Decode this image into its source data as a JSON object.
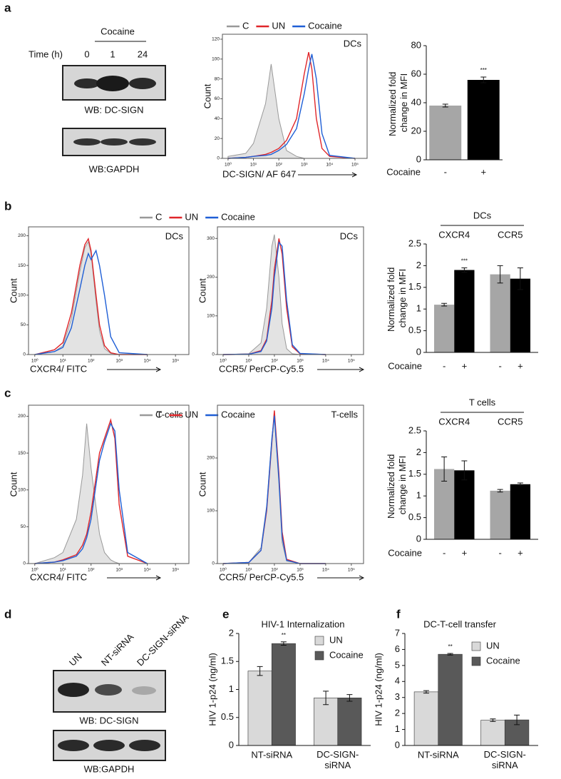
{
  "panel_labels": [
    "a",
    "b",
    "c",
    "d",
    "e",
    "f"
  ],
  "blots": [
    {
      "header": "Cocaine",
      "row_label": "Time (h)",
      "lanes": [
        "0",
        "1",
        "24"
      ],
      "panels": [
        "WB: DC-SIGN",
        "WB:GAPDH"
      ]
    },
    {
      "lanes": [
        "UN",
        "NT-siRNA",
        "DC-SIGN-siRNA"
      ],
      "panels": [
        "WB: DC-SIGN",
        "WB:GAPDH"
      ]
    }
  ],
  "chart_data": [
    {
      "type": "histogram-overlay",
      "x_label": "DC-SIGN/ AF 647",
      "y_label": "Count",
      "panel_text": "DCs",
      "legend": true,
      "log_x": true,
      "xlim": [
        0.6,
        300000
      ],
      "xticks": [
        {
          "value": 1,
          "label": "10⁰"
        },
        {
          "value": 10,
          "label": "10¹"
        },
        {
          "value": 100,
          "label": "10²"
        },
        {
          "value": 1000,
          "label": "10³"
        },
        {
          "value": 10000,
          "label": "10⁴"
        },
        {
          "value": 100000,
          "label": "10⁵"
        }
      ],
      "ylim": [
        0,
        125
      ],
      "yticks": [
        0,
        20,
        40,
        60,
        80,
        100,
        120
      ],
      "x": [
        1,
        5,
        10,
        30,
        50,
        100,
        200,
        500,
        1000,
        1500,
        2000,
        3000,
        5000,
        10000,
        100000
      ],
      "series": [
        {
          "name": "C",
          "color": "#999999",
          "fill": true,
          "values": [
            2,
            5,
            15,
            55,
            95,
            40,
            8,
            2,
            0,
            0,
            0,
            0,
            0,
            0,
            0
          ]
        },
        {
          "name": "UN",
          "color": "#e0262a",
          "values": [
            0,
            1,
            2,
            4,
            6,
            10,
            18,
            40,
            85,
            107,
            90,
            40,
            10,
            2,
            0
          ]
        },
        {
          "name": "Cocaine",
          "color": "#1f5fd6",
          "values": [
            0,
            1,
            2,
            3,
            4,
            8,
            14,
            30,
            65,
            90,
            105,
            80,
            25,
            3,
            0
          ]
        }
      ]
    },
    {
      "type": "bar",
      "y_label": "Normalized fold change in MFI",
      "x_label": "Cocaine",
      "categories": [
        "-",
        "+"
      ],
      "values": [
        38,
        56
      ],
      "errors": [
        1,
        2
      ],
      "significance": [
        null,
        "***"
      ],
      "colors": [
        "#a6a6a6",
        "#000000"
      ],
      "ylim": [
        0,
        80
      ],
      "yticks": [
        0,
        20,
        40,
        60,
        80
      ]
    },
    {
      "type": "histogram-overlay",
      "x_label": "CXCR4/ FITC",
      "y_label": "Count",
      "panel_text": "DCs",
      "legend": true,
      "log_x": true,
      "xlim": [
        0.6,
        300000
      ],
      "xticks": [
        {
          "value": 1,
          "label": "10⁰"
        },
        {
          "value": 10,
          "label": "10¹"
        },
        {
          "value": 100,
          "label": "10²"
        },
        {
          "value": 1000,
          "label": "10³"
        },
        {
          "value": 10000,
          "label": "10⁴"
        },
        {
          "value": 100000,
          "label": "10⁵"
        }
      ],
      "ylim": [
        0,
        215
      ],
      "yticks": [
        0,
        50,
        100,
        150,
        200
      ],
      "x": [
        1,
        5,
        10,
        20,
        40,
        60,
        80,
        100,
        150,
        200,
        300,
        500,
        1000,
        10000
      ],
      "series": [
        {
          "name": "C",
          "color": "#999999",
          "fill": true,
          "values": [
            0,
            5,
            15,
            60,
            140,
            180,
            190,
            170,
            90,
            40,
            10,
            2,
            0,
            0
          ]
        },
        {
          "name": "UN",
          "color": "#e0262a",
          "values": [
            0,
            8,
            20,
            70,
            150,
            185,
            195,
            175,
            100,
            50,
            15,
            3,
            0,
            0
          ]
        },
        {
          "name": "Cocaine",
          "color": "#1f5fd6",
          "values": [
            0,
            5,
            12,
            45,
            110,
            150,
            170,
            160,
            175,
            150,
            100,
            30,
            3,
            0
          ]
        }
      ]
    },
    {
      "type": "histogram-overlay",
      "x_label": "CCR5/ PerCP-Cy5.5",
      "y_label": "Count",
      "panel_text": "DCs",
      "legend": false,
      "log_x": true,
      "xlim": [
        0.6,
        300000
      ],
      "xticks": [
        {
          "value": 1,
          "label": "10⁰"
        },
        {
          "value": 10,
          "label": "10¹"
        },
        {
          "value": 100,
          "label": "10²"
        },
        {
          "value": 1000,
          "label": "10³"
        },
        {
          "value": 10000,
          "label": "10⁴"
        },
        {
          "value": 100000,
          "label": "10⁵"
        }
      ],
      "ylim": [
        0,
        330
      ],
      "yticks": [
        0,
        100,
        200,
        300
      ],
      "x": [
        1,
        10,
        30,
        50,
        80,
        100,
        150,
        200,
        300,
        500,
        1000,
        10000
      ],
      "series": [
        {
          "name": "C",
          "color": "#999999",
          "fill": true,
          "values": [
            0,
            2,
            30,
            120,
            280,
            310,
            200,
            80,
            15,
            2,
            0,
            0
          ]
        },
        {
          "name": "UN",
          "color": "#e0262a",
          "values": [
            0,
            1,
            10,
            40,
            140,
            220,
            300,
            260,
            120,
            20,
            2,
            0
          ]
        },
        {
          "name": "Cocaine",
          "color": "#1f5fd6",
          "values": [
            0,
            1,
            8,
            35,
            120,
            200,
            290,
            280,
            140,
            25,
            3,
            0
          ]
        }
      ]
    },
    {
      "type": "grouped-bar",
      "y_label": "Normalized fold change in MFI",
      "x_label": "Cocaine",
      "group_title": "DCs",
      "categories": [
        "CXCR4",
        "CCR5"
      ],
      "ylim": [
        0,
        2.5
      ],
      "yticks": [
        0,
        0.5,
        1,
        1.5,
        2,
        2.5
      ],
      "series": [
        {
          "name": "-",
          "color": "#a6a6a6",
          "values": [
            1.1,
            1.8
          ],
          "errors": [
            0.03,
            0.2
          ],
          "significance": [
            null,
            null
          ]
        },
        {
          "name": "+",
          "color": "#000000",
          "values": [
            1.9,
            1.7
          ],
          "errors": [
            0.05,
            0.25
          ],
          "significance": [
            "***",
            null
          ]
        }
      ]
    },
    {
      "type": "histogram-overlay",
      "x_label": "CXCR4/ FITC",
      "y_label": "Count",
      "panel_text": "T-cells",
      "legend": true,
      "log_x": true,
      "xlim": [
        0.6,
        300000
      ],
      "xticks": [
        {
          "value": 1,
          "label": "10⁰"
        },
        {
          "value": 10,
          "label": "10¹"
        },
        {
          "value": 100,
          "label": "10²"
        },
        {
          "value": 1000,
          "label": "10³"
        },
        {
          "value": 10000,
          "label": "10⁴"
        },
        {
          "value": 100000,
          "label": "10⁵"
        }
      ],
      "ylim": [
        0,
        215
      ],
      "yticks": [
        0,
        50,
        100,
        150,
        200
      ],
      "x": [
        1,
        5,
        10,
        30,
        50,
        70,
        100,
        200,
        300,
        500,
        700,
        1000,
        2000,
        10000
      ],
      "series": [
        {
          "name": "C",
          "color": "#999999",
          "fill": true,
          "values": [
            0,
            8,
            15,
            60,
            120,
            190,
            130,
            40,
            15,
            5,
            2,
            0,
            0,
            0
          ]
        },
        {
          "name": "UN",
          "color": "#e0262a",
          "values": [
            0,
            2,
            5,
            12,
            25,
            40,
            70,
            150,
            170,
            195,
            170,
            80,
            10,
            0
          ]
        },
        {
          "name": "Cocaine",
          "color": "#1f5fd6",
          "values": [
            0,
            2,
            4,
            10,
            20,
            35,
            60,
            140,
            165,
            190,
            180,
            100,
            15,
            0
          ]
        }
      ]
    },
    {
      "type": "histogram-overlay",
      "x_label": "CCR5/ PerCP-Cy5.5",
      "y_label": "Count",
      "panel_text": "T-cells",
      "legend": false,
      "log_x": true,
      "xlim": [
        0.6,
        300000
      ],
      "xticks": [
        {
          "value": 1,
          "label": "10⁰"
        },
        {
          "value": 10,
          "label": "10¹"
        },
        {
          "value": 100,
          "label": "10²"
        },
        {
          "value": 1000,
          "label": "10³"
        },
        {
          "value": 10000,
          "label": "10⁴"
        },
        {
          "value": 100000,
          "label": "10⁵"
        }
      ],
      "ylim": [
        0,
        300
      ],
      "yticks": [
        0,
        100,
        200
      ],
      "x": [
        1,
        10,
        30,
        50,
        80,
        100,
        150,
        200,
        300,
        1000,
        10000
      ],
      "series": [
        {
          "name": "C",
          "color": "#999999",
          "fill": true,
          "values": [
            0,
            2,
            30,
            110,
            240,
            280,
            150,
            40,
            5,
            0,
            0
          ]
        },
        {
          "name": "UN",
          "color": "#e0262a",
          "values": [
            0,
            2,
            25,
            100,
            230,
            290,
            170,
            60,
            8,
            0,
            0
          ]
        },
        {
          "name": "Cocaine",
          "color": "#1f5fd6",
          "values": [
            0,
            2,
            25,
            105,
            235,
            280,
            160,
            50,
            6,
            0,
            0
          ]
        }
      ]
    },
    {
      "type": "grouped-bar",
      "y_label": "Normalized fold change in MFI",
      "x_label": "Cocaine",
      "group_title": "T cells",
      "categories": [
        "CXCR4",
        "CCR5"
      ],
      "ylim": [
        0,
        2.5
      ],
      "yticks": [
        0,
        0.5,
        1,
        1.5,
        2,
        2.5
      ],
      "series": [
        {
          "name": "-",
          "color": "#a6a6a6",
          "values": [
            1.62,
            1.12
          ],
          "errors": [
            0.28,
            0.03
          ],
          "significance": [
            null,
            null
          ]
        },
        {
          "name": "+",
          "color": "#000000",
          "values": [
            1.59,
            1.27
          ],
          "errors": [
            0.22,
            0.03
          ],
          "significance": [
            null,
            null
          ]
        }
      ]
    },
    {
      "type": "grouped-bar",
      "title": "HIV-1 Internalization",
      "y_label": "HIV 1-p24 (ng/ml)",
      "legend": "top-right",
      "categories": [
        "NT-siRNA",
        "DC-SIGN-siRNA"
      ],
      "ylim": [
        0,
        2
      ],
      "yticks": [
        0,
        0.5,
        1,
        1.5,
        2
      ],
      "series": [
        {
          "name": "UN",
          "color": "#d9d9d9",
          "values": [
            1.33,
            0.85
          ],
          "errors": [
            0.08,
            0.12
          ],
          "significance": [
            null,
            null
          ]
        },
        {
          "name": "Cocaine",
          "color": "#595959",
          "values": [
            1.82,
            0.85
          ],
          "errors": [
            0.03,
            0.06
          ],
          "significance": [
            "**",
            null
          ]
        }
      ]
    },
    {
      "type": "grouped-bar",
      "title": "DC-T-cell transfer",
      "y_label": "HIV 1-p24 (ng/ml)",
      "legend": "top-right",
      "categories": [
        "NT-siRNA",
        "DC-SIGN-siRNA"
      ],
      "ylim": [
        0,
        7
      ],
      "yticks": [
        0,
        1,
        2,
        3,
        4,
        5,
        6,
        7
      ],
      "series": [
        {
          "name": "UN",
          "color": "#d9d9d9",
          "values": [
            3.35,
            1.58
          ],
          "errors": [
            0.08,
            0.08
          ],
          "significance": [
            null,
            null
          ]
        },
        {
          "name": "Cocaine",
          "color": "#595959",
          "values": [
            5.7,
            1.6
          ],
          "errors": [
            0.05,
            0.3
          ],
          "significance": [
            "**",
            null
          ]
        }
      ]
    }
  ]
}
